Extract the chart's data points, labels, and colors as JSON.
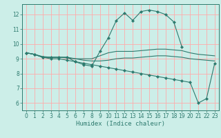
{
  "title": "",
  "xlabel": "Humidex (Indice chaleur)",
  "bg_color": "#cceee8",
  "grid_color": "#ffaaaa",
  "line_color": "#2d7a6e",
  "xlim": [
    -0.5,
    23.5
  ],
  "ylim": [
    5.5,
    12.7
  ],
  "xticks": [
    0,
    1,
    2,
    3,
    4,
    5,
    6,
    7,
    8,
    9,
    10,
    11,
    12,
    13,
    14,
    15,
    16,
    17,
    18,
    19,
    20,
    21,
    22,
    23
  ],
  "yticks": [
    6,
    7,
    8,
    9,
    10,
    11,
    12
  ],
  "series": [
    {
      "x": [
        0,
        1,
        2,
        3,
        4,
        5,
        6,
        7,
        8,
        9,
        10,
        11,
        12,
        13,
        14,
        15,
        16,
        17,
        18,
        19
      ],
      "y": [
        9.4,
        9.3,
        9.1,
        9.1,
        9.1,
        9.1,
        8.8,
        8.6,
        8.5,
        9.5,
        10.4,
        11.6,
        12.1,
        11.6,
        12.2,
        12.3,
        12.2,
        12.0,
        11.5,
        9.8
      ],
      "marker": true
    },
    {
      "x": [
        0,
        1,
        2,
        3,
        4,
        5,
        6,
        7,
        8,
        9,
        10,
        11,
        12,
        13,
        14,
        15,
        16,
        17,
        18,
        19,
        20,
        21,
        22,
        23
      ],
      "y": [
        9.4,
        9.3,
        9.1,
        9.1,
        9.1,
        9.1,
        9.0,
        8.9,
        8.85,
        8.85,
        8.9,
        9.0,
        9.05,
        9.05,
        9.1,
        9.15,
        9.2,
        9.2,
        9.15,
        9.1,
        9.0,
        8.95,
        8.9,
        8.85
      ],
      "marker": false
    },
    {
      "x": [
        0,
        1,
        2,
        3,
        4,
        5,
        6,
        7,
        8,
        9,
        10,
        11,
        12,
        13,
        14,
        15,
        16,
        17,
        18,
        19,
        20,
        21,
        22,
        23
      ],
      "y": [
        9.4,
        9.3,
        9.15,
        9.1,
        9.1,
        9.05,
        9.0,
        9.0,
        9.0,
        9.2,
        9.4,
        9.5,
        9.5,
        9.5,
        9.55,
        9.6,
        9.65,
        9.65,
        9.6,
        9.55,
        9.4,
        9.3,
        9.25,
        9.2
      ],
      "marker": false
    },
    {
      "x": [
        0,
        1,
        2,
        3,
        4,
        5,
        6,
        7,
        8,
        9,
        10,
        11,
        12,
        13,
        14,
        15,
        16,
        17,
        18,
        19,
        20,
        21,
        22,
        23
      ],
      "y": [
        9.4,
        9.3,
        9.1,
        9.0,
        9.0,
        8.9,
        8.8,
        8.7,
        8.6,
        8.5,
        8.4,
        8.3,
        8.2,
        8.1,
        8.0,
        7.9,
        7.8,
        7.7,
        7.6,
        7.5,
        7.4,
        6.0,
        6.3,
        8.7
      ],
      "marker": true
    }
  ]
}
